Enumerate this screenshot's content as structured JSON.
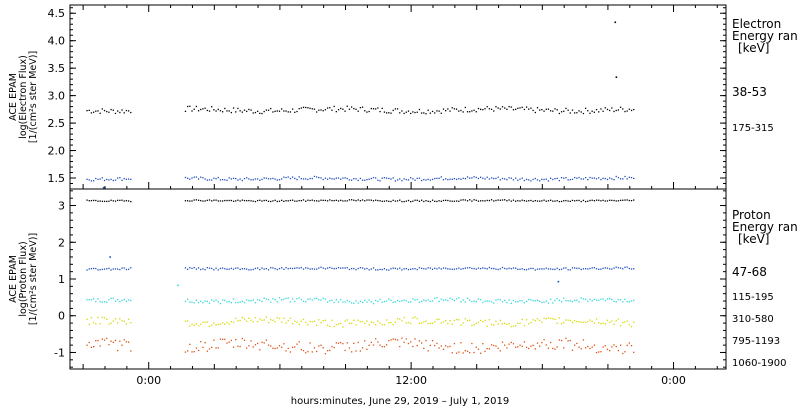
{
  "colors": {
    "axis": "#000000",
    "black": "#000000",
    "blue": "#1f4fc0",
    "cyan": "#2fd8d8",
    "yellow": "#d8d800",
    "orange": "#e05010"
  },
  "chart_data": [
    {
      "type": "scatter",
      "panel": "electron",
      "ylabel_lines": [
        "ACE EPAM",
        "log(Electron Flux)",
        "[1/(cm²s ster MeV)]"
      ],
      "yticks": [
        "1.5",
        "2.0",
        "2.5",
        "3.0",
        "3.5",
        "4.0",
        "4.5"
      ],
      "ylim": [
        1.3,
        4.65
      ],
      "legend_title": [
        "Electron",
        "Energy ran",
        "[keV]"
      ],
      "series": [
        {
          "name": "38-53",
          "color": "black",
          "level": 2.75,
          "noise": 0.05,
          "outliers": [
            [
              21.3,
              4.35
            ],
            [
              21.35,
              3.35
            ]
          ]
        },
        {
          "name": "175-315",
          "color": "blue",
          "level": 1.5,
          "noise": 0.03,
          "outliers": [
            [
              -2.1,
              1.34
            ]
          ]
        }
      ]
    },
    {
      "type": "scatter",
      "panel": "proton",
      "ylabel_lines": [
        "ACE EPAM",
        "log(Proton Flux)",
        "[1/(cm²s ster MeV)]"
      ],
      "yticks": [
        "-1",
        "0",
        "1",
        "2",
        "3"
      ],
      "ylim": [
        -1.45,
        3.45
      ],
      "legend_title": [
        "Proton",
        "Energy ran",
        "[keV]"
      ],
      "series": [
        {
          "name": "47-68",
          "color": "black",
          "level": 3.15,
          "noise": 0.02,
          "outliers": []
        },
        {
          "name": "115-195",
          "color": "blue",
          "level": 1.3,
          "noise": 0.03,
          "outliers": [
            [
              -1.8,
              1.62
            ],
            [
              18.7,
              0.95
            ]
          ]
        },
        {
          "name": "310-580",
          "color": "cyan",
          "level": 0.43,
          "noise": 0.06,
          "outliers": [
            [
              1.3,
              0.85
            ]
          ]
        },
        {
          "name": "795-1193",
          "color": "yellow",
          "level": -0.15,
          "noise": 0.1,
          "outliers": []
        },
        {
          "name": "1060-1900",
          "color": "orange",
          "level": -0.8,
          "noise": 0.16,
          "outliers": []
        }
      ]
    }
  ],
  "time_axis": {
    "xlim_hours": [
      -3.6,
      26.4
    ],
    "data_gaps_hours": [
      [
        -0.8,
        1.6
      ]
    ],
    "data_range_hours": [
      -2.85,
      22.2
    ],
    "ticks": [
      {
        "hour": 0,
        "label": "0:00"
      },
      {
        "hour": 12,
        "label": "12:00"
      },
      {
        "hour": 24,
        "label": "0:00"
      }
    ],
    "xlabel": "hours:minutes, June 29, 2019 – July  1, 2019"
  }
}
